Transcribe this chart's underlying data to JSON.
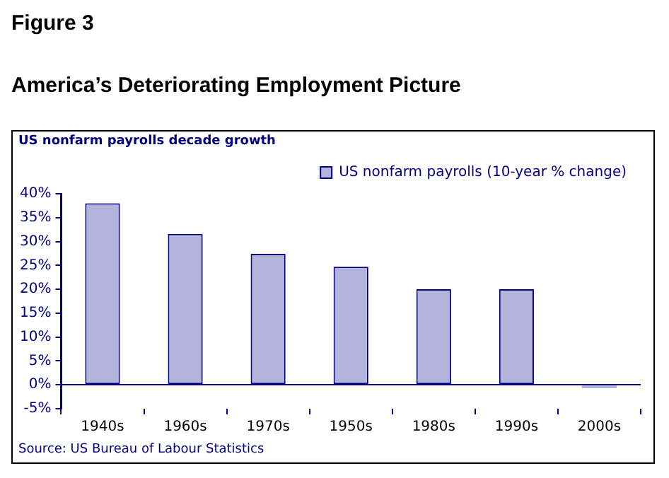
{
  "chart_data": {
    "type": "bar",
    "title": "Figure 3",
    "subtitle": "America’s Deteriorating Employment Picture",
    "ylabel": "US nonfarm payrolls decade growth",
    "categories": [
      "1940s",
      "1960s",
      "1970s",
      "1950s",
      "1980s",
      "1990s",
      "2000s"
    ],
    "series": [
      {
        "name": "US nonfarm payrolls (10-year % change)",
        "color": "#b3b3db",
        "values": [
          38,
          31.6,
          27.4,
          24.7,
          20,
          20,
          -0.7
        ]
      }
    ],
    "ylim": [
      -5,
      40
    ],
    "yticks": [
      {
        "value": -5,
        "label": "-5%"
      },
      {
        "value": 0,
        "label": "0%"
      },
      {
        "value": 5,
        "label": "5%"
      },
      {
        "value": 10,
        "label": "10%"
      },
      {
        "value": 15,
        "label": "15%"
      },
      {
        "value": 20,
        "label": "20%"
      },
      {
        "value": 25,
        "label": "25%"
      },
      {
        "value": 30,
        "label": "30%"
      },
      {
        "value": 35,
        "label": "35%"
      },
      {
        "value": 40,
        "label": "40%"
      }
    ],
    "legend": "top right",
    "annotations": [
      "Source: US Bureau of Labour Statistics"
    ]
  }
}
